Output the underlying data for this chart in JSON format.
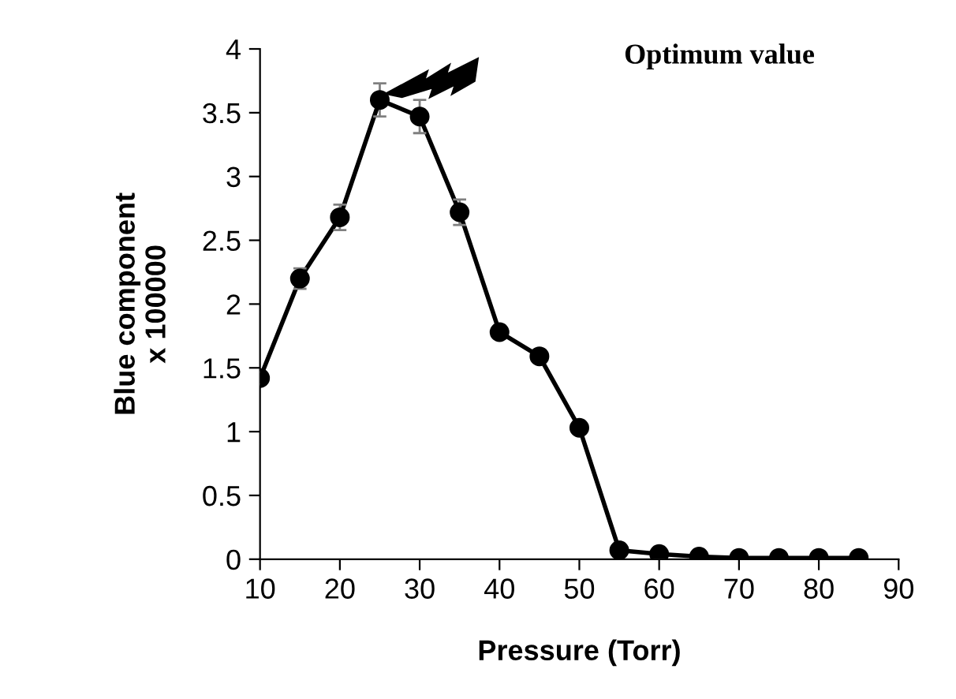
{
  "chart_data": {
    "type": "line",
    "xlabel": "Pressure (Torr)",
    "ylabel": "Blue component\nx 100000",
    "x": [
      10,
      15,
      20,
      25,
      30,
      35,
      40,
      45,
      50,
      55,
      60,
      65,
      70,
      75,
      80,
      85
    ],
    "series": [
      {
        "color": "#000000",
        "values": [
          1.42,
          2.2,
          2.68,
          3.6,
          3.47,
          2.72,
          1.78,
          1.59,
          1.03,
          0.07,
          0.04,
          0.02,
          0.01,
          0.01,
          0.01,
          0.01
        ],
        "errors": [
          0.05,
          0.08,
          0.1,
          0.13,
          0.13,
          0.1,
          0.05,
          0.05,
          0.04,
          0.03,
          0.03,
          null,
          null,
          null,
          null,
          null
        ]
      }
    ],
    "marker": "circle",
    "line_style": "solid",
    "grid": false,
    "legend": false,
    "xlim": [
      10,
      90
    ],
    "xticks": [
      10,
      20,
      30,
      40,
      50,
      60,
      70,
      80,
      90
    ],
    "ylim": [
      0,
      4
    ],
    "yticks": [
      0,
      0.5,
      1,
      1.5,
      2,
      2.5,
      3,
      3.5,
      4
    ],
    "annotations": [
      "Optimum value"
    ]
  }
}
